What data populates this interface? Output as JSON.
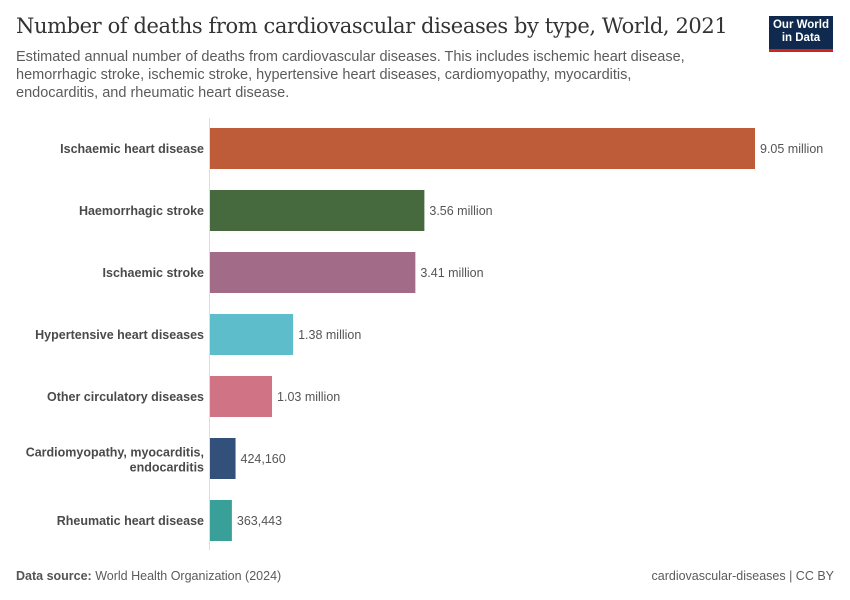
{
  "header": {
    "title": "Number of deaths from cardiovascular diseases by type, World, 2021",
    "subtitle": "Estimated annual number of deaths from cardiovascular diseases. This includes ischemic heart disease, hemorrhagic stroke, ischemic stroke, hypertensive heart diseases, cardiomyopathy, myocarditis, endocarditis, and rheumatic heart disease.",
    "logo": "Our World in Data"
  },
  "footer": {
    "source_label": "Data source:",
    "source": "World Health Organization (2024)",
    "right": "cardiovascular-diseases | CC BY"
  },
  "chart_data": {
    "type": "bar",
    "orientation": "horizontal",
    "categories": [
      "Ischaemic heart disease",
      "Haemorrhagic stroke",
      "Ischaemic stroke",
      "Hypertensive heart diseases",
      "Other circulatory diseases",
      "Cardiomyopathy, myocarditis, endocarditis",
      "Rheumatic heart disease"
    ],
    "values": [
      9050000,
      3560000,
      3410000,
      1380000,
      1030000,
      424160,
      363443
    ],
    "labels": [
      "9.05 million",
      "3.56 million",
      "3.41 million",
      "1.38 million",
      "1.03 million",
      "424,160",
      "363,443"
    ],
    "colors": [
      "#be5b38",
      "#466a3e",
      "#a26c88",
      "#5ebdcb",
      "#d07385",
      "#33507b",
      "#38a099"
    ],
    "xlim": [
      0,
      9050000
    ]
  }
}
